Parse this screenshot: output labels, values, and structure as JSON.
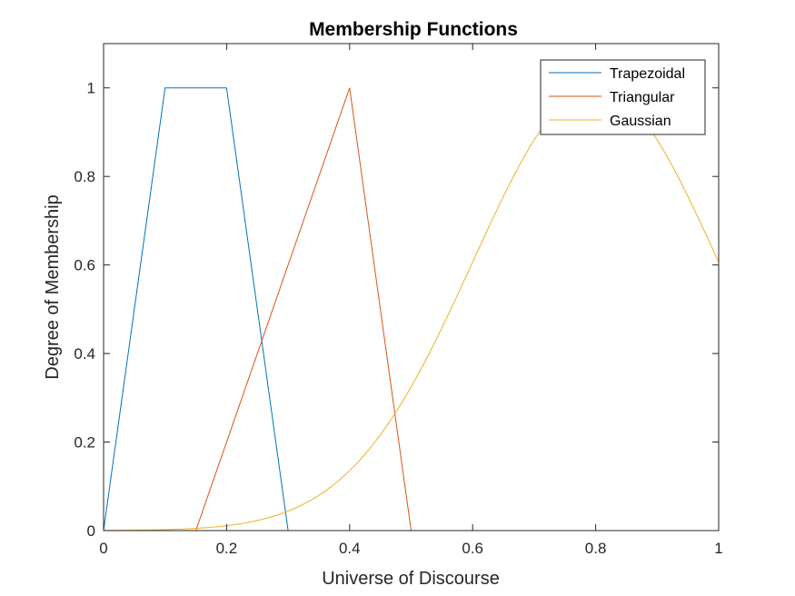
{
  "chart_data": {
    "type": "line",
    "title": "Membership Functions",
    "xlabel": "Universe of Discourse",
    "ylabel": "Degree of Membership",
    "xlim": [
      0,
      1
    ],
    "ylim": [
      0,
      1.1
    ],
    "xticks": [
      0,
      0.2,
      0.4,
      0.6,
      0.8,
      1
    ],
    "xtick_labels": [
      "0",
      "0.2",
      "0.4",
      "0.6",
      "0.8",
      "1"
    ],
    "yticks": [
      0,
      0.2,
      0.4,
      0.6,
      0.8,
      1
    ],
    "ytick_labels": [
      "0",
      "0.2",
      "0.4",
      "0.6",
      "0.8",
      "1"
    ],
    "grid": false,
    "legend_position": "top-right",
    "series": [
      {
        "name": "Trapezoidal",
        "color": "#0072BD",
        "x": [
          0,
          0.1,
          0.2,
          0.3,
          1
        ],
        "y": [
          0,
          1,
          1,
          0,
          0
        ]
      },
      {
        "name": "Triangular",
        "color": "#D95319",
        "x": [
          0,
          0.15,
          0.4,
          0.5,
          1
        ],
        "y": [
          0,
          0,
          1,
          0,
          0
        ]
      },
      {
        "name": "Gaussian",
        "color": "#EDB120",
        "function": "gaussmf",
        "mean": 0.8,
        "sigma": 0.2,
        "x_range": [
          0,
          1
        ]
      }
    ]
  }
}
